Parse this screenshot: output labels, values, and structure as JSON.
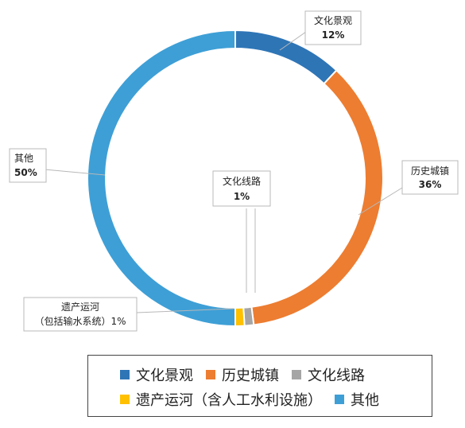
{
  "chart_data": {
    "type": "pie",
    "style": "donut",
    "slices": [
      {
        "label": "文化景观",
        "value": 12,
        "pct_label": "12%",
        "color": "#2e75b6"
      },
      {
        "label": "历史城镇",
        "value": 36,
        "pct_label": "36%",
        "color": "#ed7d31"
      },
      {
        "label": "文化线路",
        "value": 1,
        "pct_label": "1%",
        "color": "#a5a5a5"
      },
      {
        "label": "遗产运河",
        "value": 1,
        "pct_label": "1%",
        "color": "#ffc000"
      },
      {
        "label": "其他",
        "value": 50,
        "pct_label": "50%",
        "color": "#3e9fd6"
      }
    ],
    "callouts": {
      "canal_line1": "遗产运河",
      "canal_line2": "（包括输水系统）1%"
    },
    "legend": {
      "position": "bottom",
      "rows": [
        [
          {
            "label": "文化景观",
            "color": "#2e75b6"
          },
          {
            "label": "历史城镇",
            "color": "#ed7d31"
          },
          {
            "label": "文化线路",
            "color": "#a5a5a5"
          }
        ],
        [
          {
            "label": "遗产运河（含人工水利设施）",
            "color": "#ffc000"
          },
          {
            "label": "其他",
            "color": "#3e9fd6"
          }
        ]
      ]
    }
  }
}
